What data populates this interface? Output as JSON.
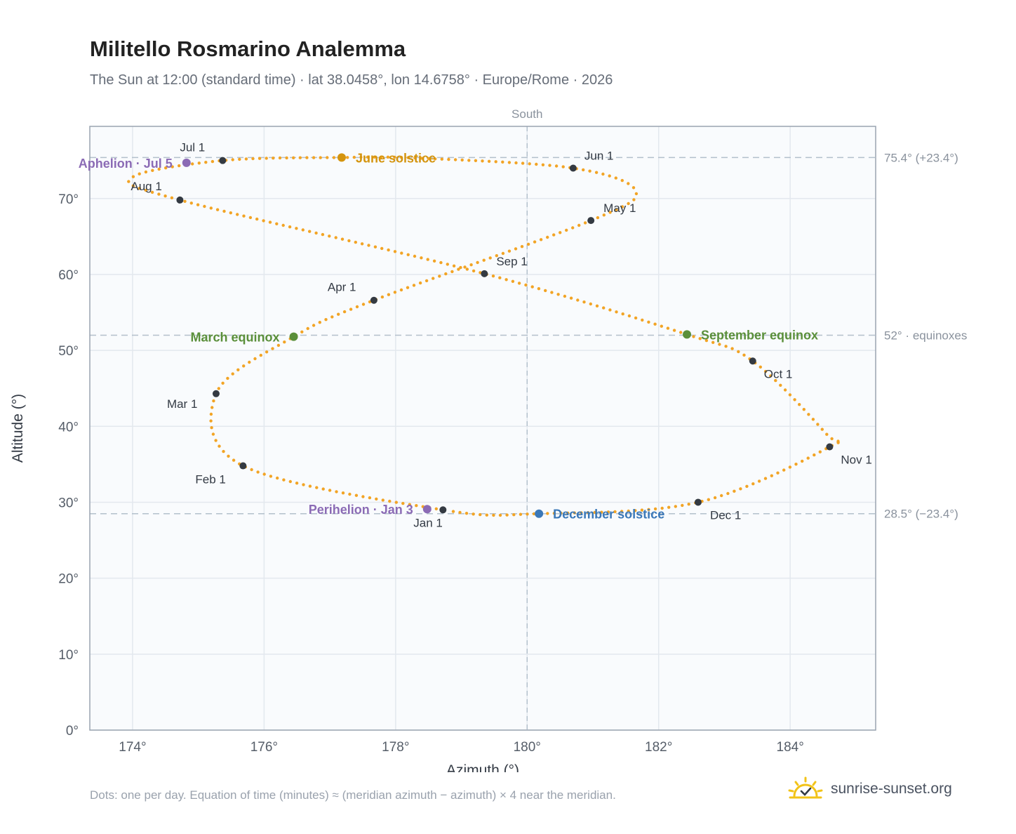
{
  "chart_data": {
    "type": "scatter",
    "title": "Militello Rosmarino Analemma",
    "subtitle": "The Sun at 12:00 (standard time) · lat 38.0458°, lon 14.6758° · Europe/Rome · 2026",
    "xlabel": "Azimuth (°)",
    "ylabel": "Altitude (°)",
    "xlim": [
      173.35,
      185.3
    ],
    "ylim": [
      0,
      79.5
    ],
    "grid": true,
    "x_ticks": [
      174,
      176,
      178,
      180,
      182,
      184
    ],
    "x_tick_labels": [
      "174°",
      "176°",
      "178°",
      "180°",
      "182°",
      "184°"
    ],
    "y_ticks": [
      0,
      10,
      20,
      30,
      40,
      50,
      60,
      70
    ],
    "y_tick_labels": [
      "0°",
      "10°",
      "20°",
      "30°",
      "40°",
      "50°",
      "60°",
      "70°"
    ],
    "south_label": "South",
    "south_azimuth": 180,
    "reference_lines": [
      {
        "altitude": 75.4,
        "label": "75.4° (+23.4°)"
      },
      {
        "altitude": 52.0,
        "label": "52° · equinoxes"
      },
      {
        "altitude": 28.5,
        "label": "28.5° (−23.4°)"
      }
    ],
    "daily_path": {
      "color": "#f2a425",
      "control_points": [
        [
          178.72,
          29.0
        ],
        [
          175.68,
          34.8
        ],
        [
          175.27,
          44.3
        ],
        [
          176.45,
          51.8
        ],
        [
          177.67,
          56.6
        ],
        [
          180.97,
          67.1
        ],
        [
          181.65,
          71.0
        ],
        [
          180.7,
          74.0
        ],
        [
          178.4,
          75.3
        ],
        [
          177.18,
          75.4
        ],
        [
          175.37,
          75.0
        ],
        [
          174.0,
          72.8
        ],
        [
          174.72,
          69.8
        ],
        [
          179.35,
          60.1
        ],
        [
          182.43,
          52.1
        ],
        [
          183.43,
          48.6
        ],
        [
          184.55,
          39.0
        ],
        [
          184.6,
          37.3
        ],
        [
          182.6,
          30.0
        ],
        [
          180.18,
          28.5
        ],
        [
          178.72,
          29.0
        ]
      ]
    },
    "month_markers": [
      {
        "label": "Jan 1",
        "az": 178.72,
        "alt": 29.0
      },
      {
        "label": "Feb 1",
        "az": 175.68,
        "alt": 34.8
      },
      {
        "label": "Mar 1",
        "az": 175.27,
        "alt": 44.3
      },
      {
        "label": "Apr 1",
        "az": 177.67,
        "alt": 56.6
      },
      {
        "label": "May 1",
        "az": 180.97,
        "alt": 67.1
      },
      {
        "label": "Jun 1",
        "az": 180.7,
        "alt": 74.0
      },
      {
        "label": "Jul 1",
        "az": 175.37,
        "alt": 75.0
      },
      {
        "label": "Aug 1",
        "az": 174.72,
        "alt": 69.8
      },
      {
        "label": "Sep 1",
        "az": 179.35,
        "alt": 60.1
      },
      {
        "label": "Oct 1",
        "az": 183.43,
        "alt": 48.6
      },
      {
        "label": "Nov 1",
        "az": 184.6,
        "alt": 37.3
      },
      {
        "label": "Dec 1",
        "az": 182.6,
        "alt": 30.0
      }
    ],
    "events": [
      {
        "label": "June solstice",
        "az": 177.18,
        "alt": 75.4,
        "color": "#d4940e"
      },
      {
        "label": "March equinox",
        "az": 176.45,
        "alt": 51.8,
        "color": "#5a8f3a"
      },
      {
        "label": "September equinox",
        "az": 182.43,
        "alt": 52.1,
        "color": "#5a8f3a"
      },
      {
        "label": "December solstice",
        "az": 180.18,
        "alt": 28.5,
        "color": "#3b78b8"
      },
      {
        "label": "Aphelion · Jul 5",
        "az": 174.82,
        "alt": 74.7,
        "color": "#8b6bb5"
      },
      {
        "label": "Perihelion · Jan 3",
        "az": 178.48,
        "alt": 29.1,
        "color": "#8b6bb5"
      }
    ]
  },
  "footer_note": "Dots: one per day. Equation of time (minutes) ≈ (meridian azimuth − azimuth) × 4 near the meridian.",
  "brand": {
    "name": "sunrise-sunset.org",
    "icon": "sun-check-icon",
    "color": "#f2c318"
  }
}
